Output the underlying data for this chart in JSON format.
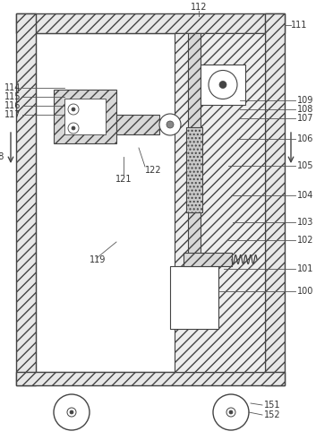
{
  "bg_color": "#ffffff",
  "line_color": "#555555",
  "dark_line": "#444444",
  "figsize": [
    3.72,
    4.91
  ],
  "dpi": 100,
  "hatch_fc": "#e8e8e8",
  "hatch_fc2": "#d8d8d8",
  "dot_fc": "#c8c8c8"
}
